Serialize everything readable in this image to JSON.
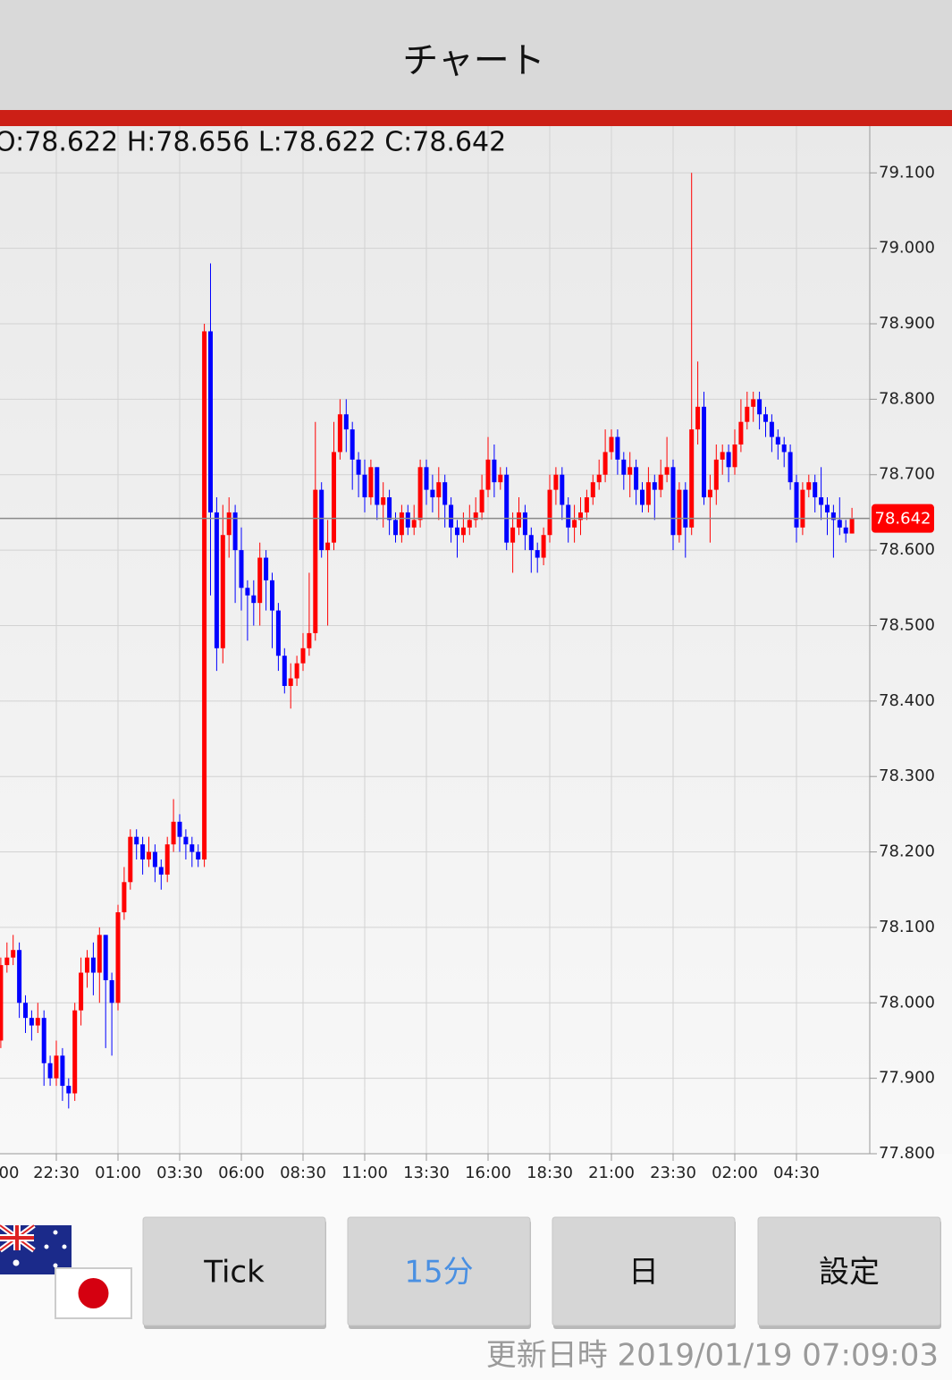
{
  "header": {
    "title": "チャート"
  },
  "chart_data": {
    "type": "candlestick",
    "ohlc_label": "O:78.622 H:78.656 L:78.622 C:78.642",
    "categories": [
      "00",
      null,
      null,
      null,
      null,
      null,
      null,
      null,
      null,
      null,
      "22:30",
      null,
      null,
      null,
      null,
      null,
      null,
      null,
      null,
      null,
      "01:00",
      null,
      null,
      null,
      null,
      null,
      null,
      null,
      null,
      null,
      "03:30",
      null,
      null,
      null,
      null,
      null,
      null,
      null,
      null,
      null,
      "06:00",
      null,
      null,
      null,
      null,
      null,
      null,
      null,
      null,
      null,
      "08:30",
      null,
      null,
      null,
      null,
      null,
      null,
      null,
      null,
      null,
      "11:00",
      null,
      null,
      null,
      null,
      null,
      null,
      null,
      null,
      null,
      "13:30",
      null,
      null,
      null,
      null,
      null,
      null,
      null,
      null,
      null,
      "16:00",
      null,
      null,
      null,
      null,
      null,
      null,
      null,
      null,
      null,
      "18:30",
      null,
      null,
      null,
      null,
      null,
      null,
      null,
      null,
      null,
      "21:00",
      null,
      null,
      null,
      null,
      null,
      null,
      null,
      null,
      null,
      "23:30",
      null,
      null,
      null,
      null,
      null,
      null,
      null,
      null,
      null,
      "02:00",
      null,
      null,
      null,
      null,
      null,
      null,
      null,
      null,
      null,
      "04:30",
      null,
      null,
      null,
      null,
      null,
      null,
      null,
      null,
      null
    ],
    "open": [
      77.94,
      77.95,
      78.05,
      78.06,
      78.07,
      78.0,
      77.98,
      77.97,
      77.98,
      77.92,
      77.9,
      77.93,
      77.89,
      77.88,
      77.99,
      78.04,
      78.06,
      78.04,
      78.09,
      78.03,
      78.0,
      78.12,
      78.16,
      78.22,
      78.21,
      78.19,
      78.2,
      78.18,
      78.17,
      78.21,
      78.24,
      78.22,
      78.21,
      78.2,
      78.19,
      78.89,
      78.65,
      78.47,
      78.62,
      78.65,
      78.6,
      78.55,
      78.54,
      78.53,
      78.59,
      78.56,
      78.52,
      78.46,
      78.42,
      78.43,
      78.45,
      78.47,
      78.49,
      78.68,
      78.6,
      78.61,
      78.73,
      78.78,
      78.76,
      78.72,
      78.7,
      78.67,
      78.71,
      78.66,
      78.67,
      78.64,
      78.62,
      78.65,
      78.63,
      78.64,
      78.71,
      78.68,
      78.67,
      78.69,
      78.66,
      78.63,
      78.62,
      78.63,
      78.64,
      78.65,
      78.68,
      78.72,
      78.69,
      78.7,
      78.61,
      78.63,
      78.65,
      78.62,
      78.6,
      78.59,
      78.62,
      78.68,
      78.7,
      78.66,
      78.63,
      78.64,
      78.65,
      78.67,
      78.69,
      78.7,
      78.73,
      78.75,
      78.72,
      78.7,
      78.71,
      78.68,
      78.66,
      78.69,
      78.68,
      78.7,
      78.71,
      78.62,
      78.68,
      78.63,
      78.76,
      78.79,
      78.67,
      78.68,
      78.72,
      78.73,
      78.71,
      78.74,
      78.77,
      78.79,
      78.8,
      78.78,
      78.77,
      78.75,
      78.74,
      78.73,
      78.69,
      78.63,
      78.68,
      78.69,
      78.67,
      78.66,
      78.65,
      78.64,
      78.63,
      78.622
    ],
    "high": [
      77.97,
      78.06,
      78.08,
      78.09,
      78.08,
      78.01,
      77.99,
      78.0,
      77.99,
      77.93,
      77.95,
      77.94,
      77.9,
      78.0,
      78.06,
      78.07,
      78.08,
      78.1,
      78.09,
      78.04,
      78.13,
      78.18,
      78.23,
      78.23,
      78.22,
      78.22,
      78.21,
      78.19,
      78.22,
      78.27,
      78.25,
      78.23,
      78.22,
      78.21,
      78.9,
      78.98,
      78.67,
      78.66,
      78.67,
      78.66,
      78.63,
      78.56,
      78.56,
      78.61,
      78.6,
      78.57,
      78.53,
      78.47,
      78.45,
      78.46,
      78.49,
      78.57,
      78.77,
      78.69,
      78.64,
      78.77,
      78.8,
      78.8,
      78.77,
      78.73,
      78.72,
      78.72,
      78.71,
      78.69,
      78.68,
      78.65,
      78.66,
      78.66,
      78.66,
      78.72,
      78.72,
      78.7,
      78.71,
      78.7,
      78.67,
      78.64,
      78.65,
      78.66,
      78.67,
      78.7,
      78.75,
      78.74,
      78.71,
      78.71,
      78.65,
      78.67,
      78.66,
      78.63,
      78.61,
      78.63,
      78.7,
      78.71,
      78.71,
      78.67,
      78.66,
      78.67,
      78.68,
      78.7,
      78.72,
      78.76,
      78.76,
      78.76,
      78.73,
      78.73,
      78.72,
      78.69,
      78.71,
      78.7,
      78.72,
      78.75,
      78.72,
      78.69,
      78.69,
      79.1,
      78.85,
      78.81,
      78.7,
      78.74,
      78.74,
      78.74,
      78.76,
      78.8,
      78.81,
      78.81,
      78.81,
      78.79,
      78.78,
      78.76,
      78.75,
      78.74,
      78.7,
      78.69,
      78.7,
      78.7,
      78.71,
      78.67,
      78.66,
      78.67,
      78.64,
      78.656
    ],
    "low": [
      77.92,
      77.94,
      78.04,
      78.05,
      77.98,
      77.96,
      77.95,
      77.96,
      77.89,
      77.89,
      77.89,
      77.87,
      77.86,
      77.87,
      77.97,
      78.02,
      78.01,
      78.0,
      77.94,
      77.93,
      77.99,
      78.11,
      78.15,
      78.19,
      78.17,
      78.18,
      78.16,
      78.15,
      78.16,
      78.2,
      78.2,
      78.19,
      78.18,
      78.18,
      78.18,
      78.54,
      78.44,
      78.45,
      78.59,
      78.53,
      78.52,
      78.48,
      78.5,
      78.5,
      78.52,
      78.47,
      78.44,
      78.41,
      78.39,
      78.42,
      78.44,
      78.46,
      78.48,
      78.59,
      78.5,
      78.6,
      78.72,
      78.73,
      78.68,
      78.67,
      78.65,
      78.66,
      78.64,
      78.63,
      78.62,
      78.61,
      78.61,
      78.62,
      78.62,
      78.63,
      78.66,
      78.65,
      78.64,
      78.63,
      78.61,
      78.59,
      78.61,
      78.62,
      78.63,
      78.64,
      78.67,
      78.67,
      78.68,
      78.6,
      78.57,
      78.62,
      78.6,
      78.57,
      78.57,
      78.58,
      78.61,
      78.66,
      78.64,
      78.61,
      78.61,
      78.62,
      78.64,
      78.66,
      78.68,
      78.69,
      78.72,
      78.7,
      78.68,
      78.67,
      78.66,
      78.65,
      78.65,
      78.64,
      78.67,
      78.69,
      78.6,
      78.61,
      78.59,
      78.62,
      78.74,
      78.66,
      78.61,
      78.66,
      78.7,
      78.69,
      78.7,
      78.73,
      78.76,
      78.77,
      78.76,
      78.75,
      78.73,
      78.72,
      78.71,
      78.68,
      78.61,
      78.62,
      78.67,
      78.65,
      78.64,
      78.62,
      78.59,
      78.62,
      78.61,
      78.622
    ],
    "close": [
      77.95,
      78.05,
      78.06,
      78.07,
      78.0,
      77.98,
      77.97,
      77.98,
      77.92,
      77.9,
      77.93,
      77.89,
      77.88,
      77.99,
      78.04,
      78.06,
      78.04,
      78.09,
      78.03,
      78.0,
      78.12,
      78.16,
      78.22,
      78.21,
      78.19,
      78.2,
      78.18,
      78.17,
      78.21,
      78.24,
      78.22,
      78.21,
      78.2,
      78.19,
      78.89,
      78.65,
      78.47,
      78.62,
      78.65,
      78.6,
      78.55,
      78.54,
      78.53,
      78.59,
      78.56,
      78.52,
      78.46,
      78.42,
      78.43,
      78.45,
      78.47,
      78.49,
      78.68,
      78.6,
      78.61,
      78.73,
      78.78,
      78.76,
      78.72,
      78.7,
      78.67,
      78.71,
      78.66,
      78.67,
      78.64,
      78.62,
      78.65,
      78.63,
      78.64,
      78.71,
      78.68,
      78.67,
      78.69,
      78.66,
      78.63,
      78.62,
      78.63,
      78.64,
      78.65,
      78.68,
      78.72,
      78.69,
      78.7,
      78.61,
      78.63,
      78.65,
      78.62,
      78.6,
      78.59,
      78.62,
      78.68,
      78.7,
      78.66,
      78.63,
      78.64,
      78.65,
      78.67,
      78.69,
      78.7,
      78.73,
      78.75,
      78.72,
      78.7,
      78.71,
      78.68,
      78.66,
      78.69,
      78.68,
      78.7,
      78.71,
      78.62,
      78.68,
      78.63,
      78.76,
      78.79,
      78.67,
      78.68,
      78.72,
      78.73,
      78.71,
      78.74,
      78.77,
      78.79,
      78.8,
      78.78,
      78.77,
      78.75,
      78.74,
      78.73,
      78.69,
      78.63,
      78.68,
      78.69,
      78.67,
      78.66,
      78.65,
      78.64,
      78.63,
      78.622,
      78.642
    ],
    "up_color": "#ff0000",
    "down_color": "#0000ff",
    "ylim": [
      77.8,
      79.162
    ],
    "yticks": [
      {
        "value": 77.8,
        "label": "77.800"
      },
      {
        "value": 77.9,
        "label": "77.900"
      },
      {
        "value": 78.0,
        "label": "78.000"
      },
      {
        "value": 78.1,
        "label": "78.100"
      },
      {
        "value": 78.2,
        "label": "78.200"
      },
      {
        "value": 78.3,
        "label": "78.300"
      },
      {
        "value": 78.4,
        "label": "78.400"
      },
      {
        "value": 78.5,
        "label": "78.500"
      },
      {
        "value": 78.6,
        "label": "78.600"
      },
      {
        "value": 78.7,
        "label": "78.700"
      },
      {
        "value": 78.8,
        "label": "78.800"
      },
      {
        "value": 78.9,
        "label": "78.900"
      },
      {
        "value": 79.0,
        "label": "79.000"
      },
      {
        "value": 79.1,
        "label": "79.100"
      }
    ],
    "last_price": 78.642,
    "grid": true
  },
  "buttons": [
    "Tick",
    "15分",
    "日",
    "設定"
  ],
  "footer": {
    "updated": "更新日時 2019/01/19 07:09:03"
  }
}
